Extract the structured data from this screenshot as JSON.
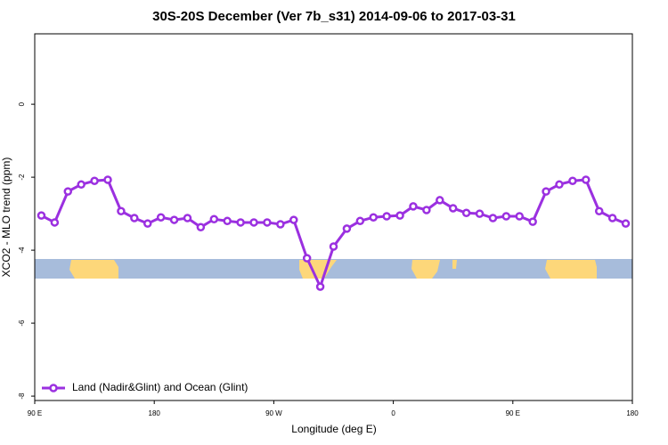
{
  "chart_data": {
    "type": "line",
    "title": "30S-20S December (Ver 7b_s31)   2014-09-06 to 2017-03-31",
    "x_label": "Longitude (deg E)",
    "y_label": "XCO2 - MLO trend (ppm)",
    "x": [
      95,
      105,
      115,
      125,
      135,
      145,
      155,
      165,
      175,
      185,
      195,
      205,
      215,
      225,
      235,
      245,
      255,
      265,
      275,
      285,
      295,
      305,
      315,
      325,
      335,
      345,
      355,
      365,
      375,
      385,
      395,
      405,
      415,
      425,
      435,
      445,
      455,
      465,
      475,
      485,
      495,
      505,
      515,
      525,
      535
    ],
    "series": [
      {
        "name": "Land (Nadir&Glint) and Ocean (Glint)",
        "color": "#9b30e0",
        "values": [
          -3.05,
          -3.24,
          -2.39,
          -2.2,
          -2.1,
          -2.07,
          -2.93,
          -3.12,
          -3.27,
          -3.1,
          -3.17,
          -3.12,
          -3.37,
          -3.15,
          -3.2,
          -3.24,
          -3.24,
          -3.24,
          -3.29,
          -3.17,
          -4.22,
          -5.0,
          -3.9,
          -3.41,
          -3.2,
          -3.1,
          -3.07,
          -3.05,
          -2.8,
          -2.9,
          -2.63,
          -2.85,
          -2.98,
          -3.0,
          -3.12,
          -3.07,
          -3.07,
          -3.22,
          -2.39,
          -2.2,
          -2.1,
          -2.07,
          -2.93,
          -3.12,
          -3.27
        ]
      }
    ],
    "xlim": [
      90,
      540
    ],
    "xticks": [
      {
        "value": 90,
        "label": "90 E"
      },
      180,
      {
        "value": 270,
        "label": "90 W"
      },
      {
        "value": 360,
        "label": "0"
      },
      {
        "value": 450,
        "label": "90 E"
      },
      {
        "value": 540,
        "label": "180"
      }
    ],
    "ylim": [
      -8.12,
      1.93
    ],
    "yticks": [
      -8,
      -6,
      -4,
      -2,
      0
    ],
    "legend": "bottom left"
  }
}
